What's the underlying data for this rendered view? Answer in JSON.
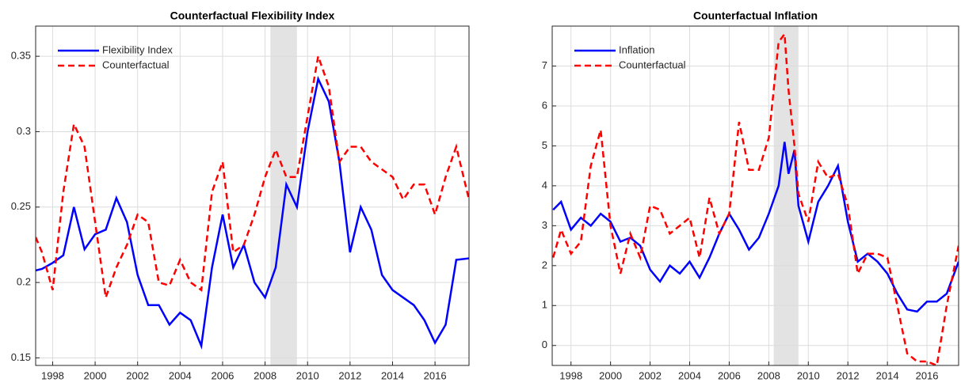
{
  "chart_data": [
    {
      "type": "line",
      "title": "Counterfactual Flexibility Index",
      "x": [
        1997.2,
        1997.5,
        1998,
        1998.5,
        1999,
        1999.5,
        2000,
        2000.5,
        2001,
        2001.5,
        2002,
        2002.5,
        2003,
        2003.5,
        2004,
        2004.5,
        2005,
        2005.5,
        2006,
        2006.5,
        2007,
        2007.5,
        2008,
        2008.5,
        2009,
        2009.5,
        2010,
        2010.5,
        2011,
        2011.5,
        2012,
        2012.5,
        2013,
        2013.5,
        2014,
        2014.5,
        2015,
        2015.5,
        2016,
        2016.5,
        2017,
        2017.6
      ],
      "series": [
        {
          "name": "Flexibility Index",
          "color": "#0000ff",
          "dash": false,
          "values": [
            0.208,
            0.209,
            0.213,
            0.218,
            0.25,
            0.222,
            0.232,
            0.235,
            0.256,
            0.24,
            0.205,
            0.185,
            0.185,
            0.172,
            0.18,
            0.175,
            0.158,
            0.21,
            0.245,
            0.21,
            0.225,
            0.2,
            0.19,
            0.21,
            0.265,
            0.25,
            0.3,
            0.335,
            0.32,
            0.28,
            0.22,
            0.25,
            0.235,
            0.205,
            0.195,
            0.19,
            0.185,
            0.175,
            0.16,
            0.172,
            0.215,
            0.216
          ]
        },
        {
          "name": "Counterfactual",
          "color": "#ff0000",
          "dash": true,
          "values": [
            0.23,
            0.22,
            0.195,
            0.26,
            0.305,
            0.29,
            0.24,
            0.19,
            0.21,
            0.225,
            0.245,
            0.24,
            0.2,
            0.198,
            0.215,
            0.2,
            0.195,
            0.26,
            0.28,
            0.22,
            0.225,
            0.245,
            0.27,
            0.288,
            0.27,
            0.27,
            0.31,
            0.35,
            0.33,
            0.28,
            0.29,
            0.29,
            0.28,
            0.275,
            0.27,
            0.255,
            0.265,
            0.265,
            0.245,
            0.27,
            0.29,
            0.255
          ]
        }
      ],
      "shaded_region": [
        2008.25,
        2009.5
      ],
      "xlim": [
        1997.2,
        2017.6
      ],
      "xticks": [
        1998,
        2000,
        2002,
        2004,
        2006,
        2008,
        2010,
        2012,
        2014,
        2016
      ],
      "ylim": [
        0.145,
        0.37
      ],
      "yticks": [
        0.15,
        0.2,
        0.25,
        0.3,
        0.35
      ],
      "grid": true,
      "legend": "upper-left"
    },
    {
      "type": "line",
      "title": "Counterfactual Inflation",
      "x": [
        1997.1,
        1997.5,
        1998,
        1998.5,
        1999,
        1999.5,
        2000,
        2000.5,
        2001,
        2001.5,
        2002,
        2002.5,
        2003,
        2003.5,
        2004,
        2004.5,
        2005,
        2005.5,
        2006,
        2006.5,
        2007,
        2007.5,
        2008,
        2008.5,
        2008.8,
        2009,
        2009.3,
        2009.5,
        2010,
        2010.5,
        2011,
        2011.5,
        2012,
        2012.5,
        2013,
        2013.5,
        2014,
        2014.5,
        2015,
        2015.5,
        2016,
        2016.5,
        2017,
        2017.6
      ],
      "series": [
        {
          "name": "Inflation",
          "color": "#0000ff",
          "dash": false,
          "values": [
            3.4,
            3.6,
            2.9,
            3.2,
            3.0,
            3.3,
            3.1,
            2.6,
            2.7,
            2.5,
            1.9,
            1.6,
            2.0,
            1.8,
            2.1,
            1.7,
            2.2,
            2.8,
            3.3,
            2.9,
            2.4,
            2.7,
            3.3,
            4.0,
            5.1,
            4.3,
            4.9,
            3.5,
            2.6,
            3.6,
            4.0,
            4.5,
            3.1,
            2.1,
            2.3,
            2.1,
            1.8,
            1.3,
            0.9,
            0.85,
            1.1,
            1.1,
            1.3,
            2.1
          ]
        },
        {
          "name": "Counterfactual",
          "color": "#ff0000",
          "dash": true,
          "values": [
            2.2,
            2.9,
            2.3,
            2.6,
            4.5,
            5.4,
            3.0,
            1.8,
            2.8,
            2.2,
            3.5,
            3.4,
            2.8,
            3.0,
            3.2,
            2.2,
            3.7,
            2.8,
            3.3,
            5.6,
            4.4,
            4.4,
            5.2,
            7.6,
            7.8,
            6.4,
            5.0,
            3.8,
            3.1,
            4.6,
            4.2,
            4.3,
            3.5,
            1.8,
            2.3,
            2.3,
            2.2,
            1.0,
            -0.2,
            -0.4,
            -0.4,
            -0.5,
            1.0,
            2.5
          ]
        }
      ],
      "shaded_region": [
        2008.25,
        2009.5
      ],
      "xlim": [
        1997.05,
        2017.6
      ],
      "xticks": [
        1998,
        2000,
        2002,
        2004,
        2006,
        2008,
        2010,
        2012,
        2014,
        2016
      ],
      "ylim": [
        -0.5,
        8.0
      ],
      "yticks": [
        0,
        1,
        2,
        3,
        4,
        5,
        6,
        7
      ],
      "grid": true,
      "legend": "upper-left"
    }
  ]
}
